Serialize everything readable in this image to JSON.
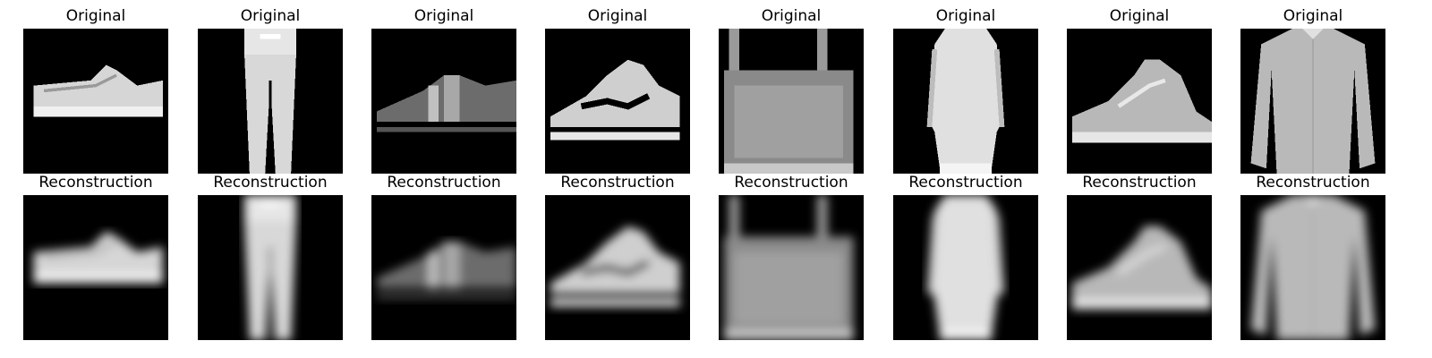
{
  "figure": {
    "rows": [
      {
        "name": "original",
        "title": "Original",
        "items": [
          {
            "depicts": "sneaker",
            "blur": 0
          },
          {
            "depicts": "trouser",
            "blur": 0
          },
          {
            "depicts": "sandal",
            "blur": 0
          },
          {
            "depicts": "sneaker",
            "blur": 0
          },
          {
            "depicts": "bag",
            "blur": 0
          },
          {
            "depicts": "dress",
            "blur": 0
          },
          {
            "depicts": "sneaker-high",
            "blur": 0
          },
          {
            "depicts": "shirt",
            "blur": 0
          }
        ]
      },
      {
        "name": "reconstruction",
        "title": "Reconstruction",
        "items": [
          {
            "depicts": "sneaker",
            "blur": 1
          },
          {
            "depicts": "trouser",
            "blur": 1
          },
          {
            "depicts": "sandal",
            "blur": 1
          },
          {
            "depicts": "sneaker",
            "blur": 1
          },
          {
            "depicts": "bag",
            "blur": 1
          },
          {
            "depicts": "dress",
            "blur": 1
          },
          {
            "depicts": "sneaker-high",
            "blur": 1
          },
          {
            "depicts": "shirt",
            "blur": 1
          }
        ]
      }
    ]
  }
}
